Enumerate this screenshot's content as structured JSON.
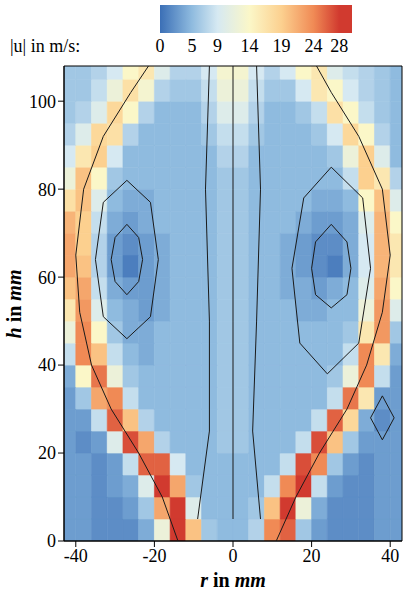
{
  "chart_data": {
    "type": "heatmap",
    "x_label": "r in mm",
    "y_label": "h in mm",
    "xlim": [
      -43,
      43
    ],
    "ylim": [
      0,
      108
    ],
    "xticks": [
      -40,
      -20,
      0,
      20,
      40
    ],
    "yticks": [
      0,
      20,
      40,
      60,
      80,
      100
    ],
    "r_edges": [
      -44,
      -40,
      -36,
      -32,
      -28,
      -24,
      -20,
      -16,
      -12,
      -8,
      -4,
      0,
      4,
      8,
      12,
      16,
      20,
      24,
      28,
      32,
      36,
      40,
      44
    ],
    "h_edges": [
      0,
      5,
      10,
      15,
      20,
      25,
      30,
      35,
      40,
      45,
      50,
      55,
      60,
      65,
      70,
      75,
      80,
      85,
      90,
      95,
      100,
      105,
      110
    ],
    "cells": [
      [
        3,
        3,
        2,
        2,
        2,
        4,
        12,
        28,
        20,
        6,
        5,
        5,
        7,
        24,
        26,
        6,
        3,
        2,
        2,
        2,
        3,
        3
      ],
      [
        3,
        3,
        2,
        2,
        3,
        6,
        22,
        28,
        10,
        5,
        5,
        5,
        6,
        20,
        28,
        12,
        4,
        2,
        2,
        2,
        3,
        3
      ],
      [
        3,
        3,
        2,
        3,
        4,
        10,
        28,
        22,
        6,
        5,
        5,
        5,
        5,
        8,
        24,
        28,
        8,
        3,
        2,
        2,
        3,
        3
      ],
      [
        3,
        3,
        2,
        3,
        8,
        26,
        26,
        9,
        5,
        5,
        5,
        5,
        5,
        5,
        8,
        27,
        24,
        6,
        3,
        2,
        3,
        3
      ],
      [
        3,
        2,
        3,
        10,
        27,
        22,
        7,
        5,
        5,
        5,
        6,
        6,
        5,
        5,
        5,
        8,
        27,
        20,
        6,
        3,
        3,
        3
      ],
      [
        3,
        3,
        8,
        26,
        20,
        7,
        5,
        5,
        5,
        5,
        6,
        6,
        5,
        5,
        5,
        5,
        8,
        26,
        18,
        4,
        2,
        3
      ],
      [
        3,
        6,
        22,
        24,
        8,
        5,
        5,
        5,
        5,
        5,
        6,
        6,
        5,
        5,
        5,
        5,
        5,
        8,
        25,
        16,
        3,
        3
      ],
      [
        4,
        14,
        25,
        12,
        6,
        5,
        5,
        5,
        5,
        5,
        6,
        6,
        5,
        5,
        5,
        5,
        5,
        6,
        12,
        24,
        8,
        3
      ],
      [
        8,
        24,
        20,
        8,
        5,
        4,
        5,
        5,
        5,
        5,
        6,
        6,
        5,
        5,
        5,
        5,
        5,
        5,
        8,
        24,
        16,
        4
      ],
      [
        12,
        24,
        14,
        6,
        4,
        4,
        5,
        5,
        5,
        5,
        6,
        6,
        5,
        5,
        5,
        5,
        5,
        5,
        6,
        16,
        23,
        6
      ],
      [
        16,
        23,
        10,
        5,
        4,
        3,
        4,
        5,
        5,
        5,
        6,
        6,
        5,
        5,
        5,
        4,
        4,
        5,
        5,
        12,
        23,
        10
      ],
      [
        20,
        22,
        8,
        4,
        3,
        3,
        4,
        5,
        5,
        5,
        6,
        6,
        5,
        5,
        4,
        4,
        3,
        4,
        5,
        10,
        22,
        14
      ],
      [
        22,
        20,
        7,
        3,
        1,
        3,
        4,
        5,
        5,
        5,
        6,
        6,
        5,
        5,
        4,
        3,
        2,
        1,
        4,
        9,
        21,
        16
      ],
      [
        22,
        19,
        7,
        3,
        2,
        3,
        4,
        5,
        5,
        5,
        6,
        6,
        5,
        5,
        4,
        3,
        2,
        2,
        4,
        9,
        21,
        16
      ],
      [
        21,
        19,
        8,
        4,
        3,
        4,
        5,
        5,
        5,
        5,
        6,
        6,
        5,
        5,
        5,
        4,
        3,
        3,
        4,
        10,
        21,
        14
      ],
      [
        17,
        20,
        10,
        5,
        4,
        4,
        5,
        5,
        5,
        5,
        6,
        6,
        5,
        5,
        5,
        5,
        4,
        4,
        5,
        14,
        20,
        10
      ],
      [
        12,
        20,
        14,
        6,
        5,
        5,
        5,
        5,
        5,
        5,
        6,
        6,
        5,
        5,
        5,
        5,
        5,
        5,
        8,
        19,
        16,
        7
      ],
      [
        9,
        16,
        19,
        9,
        5,
        5,
        5,
        5,
        5,
        5,
        7,
        7,
        5,
        5,
        5,
        5,
        5,
        6,
        12,
        19,
        10,
        5
      ],
      [
        7,
        10,
        18,
        17,
        7,
        5,
        5,
        5,
        5,
        6,
        8,
        8,
        6,
        5,
        5,
        5,
        6,
        9,
        18,
        14,
        7,
        5
      ],
      [
        6,
        7,
        10,
        18,
        14,
        7,
        5,
        5,
        5,
        7,
        10,
        10,
        7,
        5,
        5,
        6,
        8,
        17,
        14,
        8,
        6,
        5
      ],
      [
        6,
        6,
        8,
        12,
        17,
        13,
        7,
        6,
        6,
        8,
        12,
        12,
        8,
        6,
        6,
        9,
        16,
        14,
        9,
        7,
        6,
        5
      ],
      [
        6,
        6,
        7,
        9,
        14,
        16,
        10,
        7,
        7,
        9,
        13,
        13,
        9,
        7,
        9,
        14,
        16,
        10,
        8,
        7,
        6,
        5
      ]
    ],
    "colorbar": {
      "label": "|u| in m/s:",
      "range": [
        0,
        30
      ],
      "ticks": [
        0,
        5,
        9,
        14,
        19,
        24,
        28
      ],
      "colors": [
        "#3b6fb6",
        "#8fbbdf",
        "#d6e9f2",
        "#fbf7c8",
        "#fcd08f",
        "#f08a55",
        "#d13a2f"
      ]
    },
    "streamlines": {
      "color": "#1a1a1a",
      "lines": [
        [
          [
            -14,
            0
          ],
          [
            -18,
            10
          ],
          [
            -24,
            20
          ],
          [
            -31,
            30
          ],
          [
            -36,
            40
          ],
          [
            -39,
            52
          ],
          [
            -40,
            65
          ],
          [
            -38,
            80
          ],
          [
            -33,
            92
          ],
          [
            -26,
            102
          ],
          [
            -20,
            110
          ]
        ],
        [
          [
            11,
            0
          ],
          [
            16,
            10
          ],
          [
            22,
            20
          ],
          [
            29,
            30
          ],
          [
            34,
            40
          ],
          [
            38,
            52
          ],
          [
            40,
            65
          ],
          [
            38,
            80
          ],
          [
            32,
            92
          ],
          [
            25,
            102
          ],
          [
            20,
            110
          ]
        ],
        [
          [
            -27,
            82
          ],
          [
            -21,
            77
          ],
          [
            -19,
            64
          ],
          [
            -21,
            51
          ],
          [
            -27,
            46
          ],
          [
            -33,
            51
          ],
          [
            -35,
            64
          ],
          [
            -33,
            77
          ],
          [
            -27,
            82
          ]
        ],
        [
          [
            -27,
            72
          ],
          [
            -24,
            69
          ],
          [
            -23,
            64
          ],
          [
            -24,
            59
          ],
          [
            -27,
            56
          ],
          [
            -30,
            59
          ],
          [
            -31,
            64
          ],
          [
            -30,
            69
          ],
          [
            -27,
            72
          ]
        ],
        [
          [
            25,
            85
          ],
          [
            33,
            78
          ],
          [
            35,
            62
          ],
          [
            32,
            45
          ],
          [
            24,
            38
          ],
          [
            17,
            45
          ],
          [
            15,
            62
          ],
          [
            18,
            78
          ],
          [
            25,
            85
          ]
        ],
        [
          [
            25,
            72
          ],
          [
            29,
            68
          ],
          [
            30,
            62
          ],
          [
            29,
            56
          ],
          [
            25,
            53
          ],
          [
            21,
            56
          ],
          [
            20,
            62
          ],
          [
            21,
            68
          ],
          [
            25,
            72
          ]
        ],
        [
          [
            -6,
            108
          ],
          [
            -7,
            80
          ],
          [
            -6,
            50
          ],
          [
            -6,
            25
          ],
          [
            -9,
            5
          ]
        ],
        [
          [
            6,
            108
          ],
          [
            7,
            80
          ],
          [
            6,
            50
          ],
          [
            5,
            25
          ],
          [
            7,
            5
          ]
        ],
        [
          [
            0,
            108
          ],
          [
            0,
            80
          ],
          [
            0,
            50
          ],
          [
            0,
            25
          ],
          [
            0,
            5
          ]
        ],
        [
          [
            38,
            33
          ],
          [
            41,
            28
          ],
          [
            38,
            23
          ],
          [
            35,
            28
          ],
          [
            38,
            33
          ]
        ]
      ]
    }
  }
}
